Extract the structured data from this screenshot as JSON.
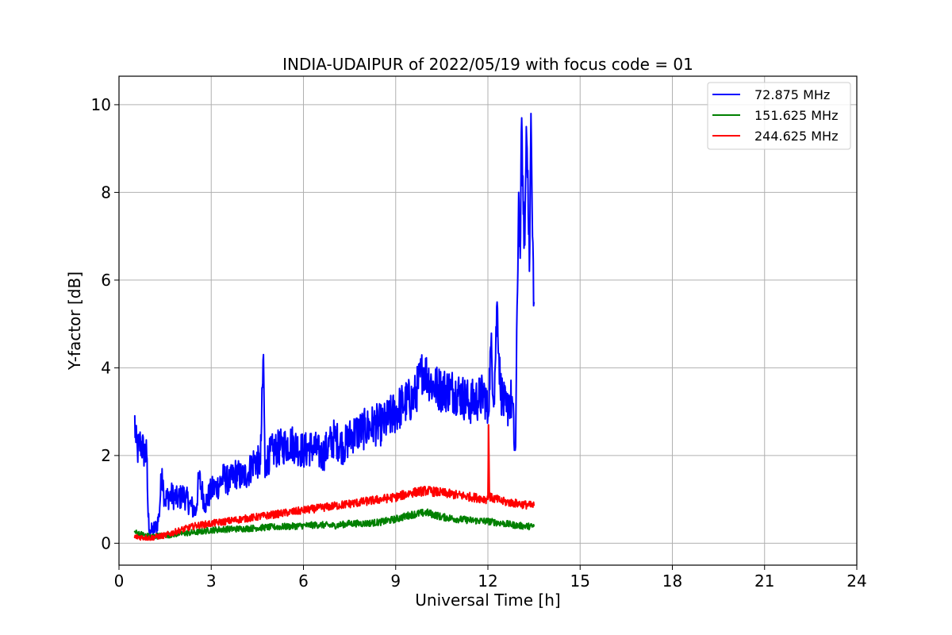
{
  "chart_data": {
    "type": "line",
    "title": "INDIA-UDAIPUR of 2022/05/19 with focus code = 01",
    "xlabel": "Universal Time [h]",
    "ylabel": "Y-factor [dB]",
    "xlim": [
      0,
      24
    ],
    "ylim": [
      -0.5,
      10.65
    ],
    "xticks": [
      0,
      3,
      6,
      9,
      12,
      15,
      18,
      21,
      24
    ],
    "yticks": [
      0,
      2,
      4,
      6,
      8,
      10
    ],
    "grid": true,
    "legend_position": "top-right",
    "series": [
      {
        "name": " 72.875 MHz",
        "color": "#0000ff",
        "x": [
          0.5,
          0.55,
          0.6,
          0.7,
          0.8,
          0.9,
          0.95,
          1.0,
          1.05,
          1.1,
          1.2,
          1.3,
          1.4,
          1.45,
          1.5,
          1.7,
          1.9,
          2.1,
          2.3,
          2.5,
          2.6,
          2.7,
          2.8,
          3.0,
          3.2,
          3.4,
          3.6,
          3.8,
          4.0,
          4.2,
          4.4,
          4.6,
          4.7,
          4.75,
          4.8,
          5.0,
          5.3,
          5.6,
          6.0,
          6.3,
          6.6,
          7.0,
          7.3,
          7.6,
          8.0,
          8.3,
          8.6,
          9.0,
          9.3,
          9.6,
          9.9,
          10.2,
          10.5,
          10.8,
          11.1,
          11.4,
          11.7,
          11.9,
          12.0,
          12.1,
          12.2,
          12.3,
          12.4,
          12.5,
          12.6,
          12.7,
          12.8,
          12.85,
          12.9,
          13.0,
          13.05,
          13.1,
          13.15,
          13.2,
          13.25,
          13.3,
          13.35,
          13.4,
          13.45,
          13.5
        ],
        "y": [
          2.9,
          2.3,
          2.1,
          2.3,
          2.1,
          2.0,
          0.6,
          0.3,
          0.25,
          0.3,
          0.35,
          0.6,
          1.7,
          1.2,
          1.0,
          1.1,
          1.0,
          1.1,
          0.9,
          0.7,
          1.5,
          1.2,
          0.9,
          1.2,
          1.3,
          1.5,
          1.4,
          1.6,
          1.5,
          1.6,
          1.9,
          1.8,
          4.3,
          1.5,
          1.9,
          2.1,
          2.2,
          2.3,
          2.1,
          2.2,
          2.0,
          2.4,
          2.2,
          2.5,
          2.6,
          2.7,
          2.7,
          3.0,
          3.2,
          3.3,
          4.0,
          3.6,
          3.5,
          3.5,
          3.4,
          3.2,
          3.3,
          3.4,
          2.9,
          4.5,
          3.3,
          5.5,
          3.6,
          3.2,
          3.0,
          3.3,
          3.2,
          2.3,
          2.2,
          8.0,
          6.5,
          9.7,
          7.5,
          6.8,
          9.5,
          8.5,
          6.2,
          9.8,
          7.0,
          5.5
        ]
      },
      {
        "name": "151.625 MHz",
        "color": "#008000",
        "x": [
          0.5,
          1.0,
          1.5,
          2.0,
          2.5,
          3.0,
          3.5,
          4.0,
          4.5,
          5.0,
          5.5,
          6.0,
          6.5,
          7.0,
          7.5,
          8.0,
          8.5,
          9.0,
          9.5,
          10.0,
          10.5,
          11.0,
          11.5,
          12.0,
          12.5,
          13.0,
          13.5
        ],
        "y": [
          0.25,
          0.15,
          0.18,
          0.22,
          0.25,
          0.3,
          0.32,
          0.33,
          0.35,
          0.37,
          0.38,
          0.4,
          0.42,
          0.4,
          0.45,
          0.45,
          0.48,
          0.55,
          0.65,
          0.7,
          0.6,
          0.55,
          0.52,
          0.5,
          0.45,
          0.4,
          0.38
        ]
      },
      {
        "name": "244.625 MHz",
        "color": "#ff0000",
        "x": [
          0.5,
          1.0,
          1.5,
          2.0,
          2.5,
          3.0,
          3.5,
          4.0,
          4.5,
          5.0,
          5.5,
          6.0,
          6.5,
          7.0,
          7.5,
          8.0,
          8.5,
          9.0,
          9.5,
          10.0,
          10.5,
          11.0,
          11.5,
          12.0,
          12.02,
          12.05,
          12.5,
          13.0,
          13.5
        ],
        "y": [
          0.15,
          0.12,
          0.18,
          0.3,
          0.4,
          0.45,
          0.5,
          0.55,
          0.6,
          0.65,
          0.7,
          0.75,
          0.8,
          0.85,
          0.9,
          0.95,
          1.0,
          1.05,
          1.15,
          1.2,
          1.15,
          1.1,
          1.05,
          1.0,
          2.7,
          1.05,
          0.95,
          0.9,
          0.85
        ]
      }
    ]
  }
}
